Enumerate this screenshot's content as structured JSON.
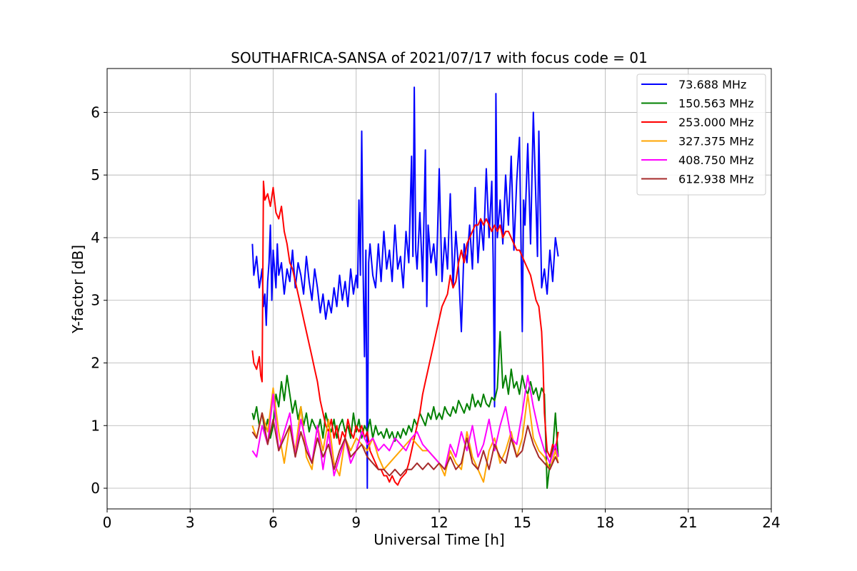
{
  "chart_data": {
    "type": "line",
    "title": "SOUTHAFRICA-SANSA of 2021/07/17 with focus code = 01",
    "xlabel": "Universal Time [h]",
    "ylabel": "Y-factor [dB]",
    "xlim": [
      0,
      24
    ],
    "ylim": [
      -0.33,
      6.7
    ],
    "xticks": [
      0,
      3,
      6,
      9,
      12,
      15,
      18,
      21,
      24
    ],
    "yticks": [
      0,
      1,
      2,
      3,
      4,
      5,
      6
    ],
    "grid": true,
    "legend_position": "top-right",
    "series": [
      {
        "name": " 73.688 MHz",
        "color": "#0000ff",
        "x": [
          5.25,
          5.3,
          5.4,
          5.5,
          5.6,
          5.65,
          5.7,
          5.75,
          5.8,
          5.85,
          5.9,
          5.95,
          6.0,
          6.05,
          6.1,
          6.15,
          6.2,
          6.3,
          6.4,
          6.5,
          6.6,
          6.7,
          6.8,
          6.9,
          7.0,
          7.1,
          7.2,
          7.3,
          7.4,
          7.5,
          7.6,
          7.7,
          7.8,
          7.9,
          8.0,
          8.1,
          8.2,
          8.3,
          8.4,
          8.5,
          8.6,
          8.7,
          8.8,
          8.9,
          9.0,
          9.05,
          9.1,
          9.15,
          9.2,
          9.25,
          9.3,
          9.35,
          9.4,
          9.45,
          9.5,
          9.6,
          9.7,
          9.8,
          9.9,
          10.0,
          10.1,
          10.2,
          10.3,
          10.4,
          10.5,
          10.6,
          10.7,
          10.8,
          10.9,
          11.0,
          11.05,
          11.1,
          11.15,
          11.2,
          11.3,
          11.4,
          11.5,
          11.55,
          11.6,
          11.7,
          11.8,
          11.9,
          12.0,
          12.1,
          12.2,
          12.3,
          12.4,
          12.5,
          12.6,
          12.7,
          12.8,
          12.9,
          13.0,
          13.1,
          13.2,
          13.3,
          13.4,
          13.5,
          13.6,
          13.7,
          13.8,
          13.9,
          13.95,
          14.0,
          14.05,
          14.1,
          14.2,
          14.3,
          14.4,
          14.5,
          14.6,
          14.7,
          14.8,
          14.9,
          15.0,
          15.05,
          15.1,
          15.2,
          15.3,
          15.4,
          15.5,
          15.55,
          15.6,
          15.7,
          15.8,
          15.9,
          16.0,
          16.1,
          16.2,
          16.3
        ],
        "y": [
          3.9,
          3.4,
          3.7,
          3.2,
          3.5,
          2.9,
          3.1,
          2.6,
          3.3,
          3.6,
          4.2,
          3.0,
          3.8,
          3.5,
          3.2,
          3.9,
          3.4,
          3.6,
          3.1,
          3.5,
          3.3,
          3.8,
          3.2,
          3.6,
          3.4,
          3.1,
          3.7,
          3.3,
          3.0,
          3.5,
          3.2,
          2.8,
          3.1,
          2.7,
          3.0,
          2.8,
          3.2,
          2.9,
          3.4,
          3.0,
          3.3,
          2.9,
          3.5,
          3.1,
          3.4,
          3.2,
          4.6,
          3.4,
          5.7,
          3.5,
          2.1,
          3.8,
          0.0,
          3.6,
          3.9,
          3.4,
          3.2,
          3.9,
          3.3,
          4.1,
          3.5,
          3.8,
          3.3,
          4.2,
          3.5,
          3.7,
          3.2,
          4.1,
          3.6,
          5.3,
          3.7,
          6.4,
          3.8,
          3.5,
          4.4,
          3.3,
          5.4,
          2.9,
          4.2,
          3.6,
          3.9,
          3.4,
          5.1,
          3.3,
          4.0,
          3.5,
          4.7,
          3.2,
          4.1,
          3.5,
          2.5,
          3.9,
          3.6,
          4.2,
          3.5,
          4.8,
          3.6,
          4.3,
          3.8,
          5.1,
          4.0,
          4.9,
          3.6,
          1.3,
          6.3,
          4.0,
          4.6,
          3.9,
          5.0,
          4.2,
          5.3,
          3.8,
          4.9,
          5.6,
          2.5,
          4.6,
          4.2,
          5.5,
          3.9,
          6.0,
          4.5,
          3.7,
          5.7,
          3.2,
          3.5,
          3.1,
          3.8,
          3.3,
          4.0,
          3.7
        ]
      },
      {
        "name": "150.563 MHz",
        "color": "#008000",
        "x": [
          5.25,
          5.3,
          5.4,
          5.5,
          5.6,
          5.7,
          5.8,
          5.9,
          6.0,
          6.1,
          6.2,
          6.3,
          6.4,
          6.5,
          6.6,
          6.7,
          6.8,
          6.9,
          7.0,
          7.1,
          7.2,
          7.3,
          7.4,
          7.5,
          7.6,
          7.7,
          7.8,
          7.9,
          8.0,
          8.1,
          8.2,
          8.3,
          8.4,
          8.5,
          8.6,
          8.7,
          8.8,
          8.9,
          9.0,
          9.1,
          9.2,
          9.3,
          9.4,
          9.5,
          9.6,
          9.7,
          9.8,
          9.9,
          10.0,
          10.1,
          10.2,
          10.3,
          10.4,
          10.5,
          10.6,
          10.7,
          10.8,
          10.9,
          11.0,
          11.1,
          11.2,
          11.3,
          11.4,
          11.5,
          11.6,
          11.7,
          11.8,
          11.9,
          12.0,
          12.1,
          12.2,
          12.3,
          12.4,
          12.5,
          12.6,
          12.7,
          12.8,
          12.9,
          13.0,
          13.1,
          13.2,
          13.3,
          13.4,
          13.5,
          13.6,
          13.7,
          13.8,
          13.9,
          14.0,
          14.1,
          14.2,
          14.3,
          14.4,
          14.5,
          14.6,
          14.7,
          14.8,
          14.9,
          15.0,
          15.1,
          15.2,
          15.3,
          15.4,
          15.5,
          15.6,
          15.7,
          15.8,
          15.9,
          16.0,
          16.1,
          16.2,
          16.3
        ],
        "y": [
          1.2,
          1.1,
          1.3,
          1.0,
          1.2,
          0.9,
          1.1,
          0.8,
          1.0,
          1.5,
          1.3,
          1.7,
          1.4,
          1.8,
          1.5,
          1.2,
          1.4,
          1.1,
          1.3,
          1.0,
          1.2,
          0.9,
          1.1,
          1.0,
          0.9,
          1.1,
          0.8,
          1.2,
          1.0,
          0.9,
          1.1,
          0.8,
          1.0,
          1.1,
          0.9,
          1.0,
          0.8,
          1.2,
          0.9,
          1.1,
          0.8,
          1.0,
          0.9,
          1.1,
          0.8,
          1.0,
          0.85,
          0.9,
          0.8,
          0.95,
          0.8,
          0.9,
          0.75,
          0.9,
          0.8,
          0.95,
          0.85,
          1.0,
          0.9,
          1.1,
          1.0,
          1.2,
          1.1,
          1.0,
          1.2,
          1.1,
          1.3,
          1.1,
          1.2,
          1.1,
          1.3,
          1.2,
          1.15,
          1.3,
          1.2,
          1.4,
          1.3,
          1.2,
          1.35,
          1.25,
          1.5,
          1.3,
          1.4,
          1.3,
          1.5,
          1.35,
          1.3,
          1.45,
          1.4,
          1.6,
          2.5,
          1.6,
          1.8,
          1.5,
          1.9,
          1.6,
          1.7,
          1.5,
          1.8,
          1.6,
          1.5,
          1.7,
          1.5,
          1.6,
          1.4,
          1.6,
          1.5,
          0.0,
          0.4,
          0.6,
          1.2,
          0.5
        ]
      },
      {
        "name": "253.000 MHz",
        "color": "#ff0000",
        "x": [
          5.25,
          5.3,
          5.4,
          5.5,
          5.55,
          5.6,
          5.65,
          5.7,
          5.8,
          5.9,
          6.0,
          6.1,
          6.2,
          6.3,
          6.4,
          6.5,
          6.6,
          6.7,
          6.8,
          6.9,
          7.0,
          7.1,
          7.2,
          7.3,
          7.4,
          7.5,
          7.6,
          7.7,
          7.8,
          7.9,
          8.0,
          8.1,
          8.2,
          8.3,
          8.4,
          8.5,
          8.6,
          8.7,
          8.8,
          8.9,
          9.0,
          9.1,
          9.2,
          9.3,
          9.4,
          9.5,
          9.6,
          9.7,
          9.8,
          9.9,
          10.0,
          10.1,
          10.2,
          10.3,
          10.4,
          10.5,
          10.6,
          10.7,
          10.8,
          10.9,
          11.0,
          11.1,
          11.2,
          11.3,
          11.4,
          11.5,
          11.6,
          11.7,
          11.8,
          11.9,
          12.0,
          12.1,
          12.2,
          12.3,
          12.4,
          12.5,
          12.6,
          12.7,
          12.8,
          12.9,
          13.0,
          13.1,
          13.2,
          13.3,
          13.4,
          13.5,
          13.6,
          13.7,
          13.8,
          13.9,
          14.0,
          14.1,
          14.2,
          14.3,
          14.4,
          14.5,
          14.6,
          14.7,
          14.8,
          14.9,
          15.0,
          15.1,
          15.2,
          15.3,
          15.4,
          15.5,
          15.6,
          15.65,
          15.7,
          15.75,
          15.8,
          15.9,
          16.0,
          16.1,
          16.2,
          16.3
        ],
        "y": [
          2.2,
          2.0,
          1.9,
          2.1,
          1.8,
          1.7,
          4.9,
          4.6,
          4.7,
          4.5,
          4.8,
          4.4,
          4.3,
          4.5,
          4.1,
          3.9,
          3.6,
          3.5,
          3.3,
          3.1,
          2.9,
          2.7,
          2.5,
          2.3,
          2.1,
          1.9,
          1.7,
          1.4,
          1.2,
          1.0,
          0.9,
          1.1,
          0.8,
          1.0,
          0.7,
          0.9,
          0.8,
          1.1,
          0.9,
          0.8,
          1.0,
          0.9,
          1.0,
          0.8,
          0.9,
          0.6,
          0.5,
          0.4,
          0.3,
          0.3,
          0.2,
          0.2,
          0.1,
          0.2,
          0.1,
          0.05,
          0.15,
          0.2,
          0.25,
          0.4,
          0.6,
          0.8,
          1.0,
          1.2,
          1.5,
          1.7,
          1.9,
          2.1,
          2.3,
          2.5,
          2.7,
          2.9,
          3.0,
          3.1,
          3.4,
          3.2,
          3.3,
          3.6,
          3.8,
          3.6,
          3.9,
          4.0,
          4.1,
          4.2,
          4.2,
          4.3,
          4.2,
          4.3,
          4.2,
          4.1,
          4.2,
          4.1,
          4.2,
          4.0,
          4.1,
          4.1,
          4.0,
          3.9,
          3.8,
          3.8,
          3.7,
          3.6,
          3.5,
          3.4,
          3.2,
          3.0,
          2.9,
          2.7,
          2.5,
          2.0,
          1.2,
          0.6,
          0.5,
          0.7,
          0.6,
          0.9
        ]
      },
      {
        "name": "327.375 MHz",
        "color": "#ffa500",
        "x": [
          5.25,
          5.4,
          5.6,
          5.8,
          6.0,
          6.2,
          6.4,
          6.6,
          6.8,
          7.0,
          7.2,
          7.4,
          7.6,
          7.8,
          8.0,
          8.2,
          8.4,
          8.6,
          8.8,
          9.0,
          9.2,
          9.4,
          9.6,
          9.8,
          10.0,
          10.2,
          10.4,
          10.6,
          10.8,
          11.0,
          11.2,
          11.4,
          11.6,
          11.8,
          12.0,
          12.2,
          12.4,
          12.6,
          12.8,
          13.0,
          13.2,
          13.4,
          13.6,
          13.8,
          14.0,
          14.2,
          14.4,
          14.6,
          14.8,
          15.0,
          15.2,
          15.4,
          15.6,
          15.8,
          16.0,
          16.2,
          16.3
        ],
        "y": [
          1.0,
          0.8,
          1.2,
          0.9,
          1.6,
          0.9,
          0.4,
          1.0,
          0.6,
          1.3,
          0.5,
          0.3,
          1.0,
          0.6,
          1.1,
          0.4,
          0.2,
          0.8,
          0.6,
          0.8,
          0.7,
          0.6,
          0.8,
          0.5,
          0.3,
          0.4,
          0.5,
          0.6,
          0.7,
          0.8,
          0.7,
          0.6,
          0.6,
          0.5,
          0.4,
          0.2,
          0.6,
          0.4,
          0.3,
          0.9,
          0.5,
          0.3,
          0.1,
          0.6,
          0.8,
          0.4,
          0.6,
          0.9,
          0.5,
          0.8,
          1.5,
          0.8,
          0.6,
          0.5,
          0.3,
          0.6,
          0.4
        ]
      },
      {
        "name": "408.750 MHz",
        "color": "#ff00ff",
        "x": [
          5.25,
          5.4,
          5.6,
          5.8,
          6.0,
          6.2,
          6.4,
          6.6,
          6.8,
          7.0,
          7.2,
          7.4,
          7.6,
          7.8,
          8.0,
          8.2,
          8.4,
          8.6,
          8.8,
          9.0,
          9.2,
          9.4,
          9.6,
          9.8,
          10.0,
          10.2,
          10.4,
          10.6,
          10.8,
          11.0,
          11.2,
          11.4,
          11.6,
          11.8,
          12.0,
          12.2,
          12.4,
          12.6,
          12.8,
          13.0,
          13.2,
          13.4,
          13.6,
          13.8,
          14.0,
          14.2,
          14.4,
          14.6,
          14.8,
          15.0,
          15.2,
          15.4,
          15.6,
          15.8,
          16.0,
          16.2,
          16.3
        ],
        "y": [
          0.6,
          0.5,
          1.0,
          0.7,
          1.5,
          0.6,
          0.9,
          1.2,
          0.5,
          1.1,
          0.7,
          0.4,
          1.0,
          0.3,
          0.9,
          0.2,
          0.5,
          0.8,
          0.4,
          0.6,
          0.9,
          0.7,
          0.8,
          0.6,
          0.7,
          0.6,
          0.8,
          0.7,
          0.6,
          0.8,
          0.9,
          0.7,
          0.6,
          0.5,
          0.4,
          0.3,
          0.7,
          0.5,
          0.9,
          0.6,
          1.0,
          0.5,
          0.7,
          1.1,
          0.6,
          1.0,
          1.3,
          0.8,
          0.7,
          1.2,
          1.8,
          1.3,
          0.9,
          0.6,
          0.4,
          0.7,
          0.5
        ]
      },
      {
        "name": "612.938 MHz",
        "color": "#a52a2a",
        "x": [
          5.25,
          5.4,
          5.6,
          5.8,
          6.0,
          6.2,
          6.4,
          6.6,
          6.8,
          7.0,
          7.2,
          7.4,
          7.6,
          7.8,
          8.0,
          8.2,
          8.4,
          8.6,
          8.8,
          9.0,
          9.2,
          9.4,
          9.6,
          9.8,
          10.0,
          10.2,
          10.4,
          10.6,
          10.8,
          11.0,
          11.2,
          11.4,
          11.6,
          11.8,
          12.0,
          12.2,
          12.4,
          12.6,
          12.8,
          13.0,
          13.2,
          13.4,
          13.6,
          13.8,
          14.0,
          14.2,
          14.4,
          14.6,
          14.8,
          15.0,
          15.2,
          15.4,
          15.6,
          15.8,
          16.0,
          16.2,
          16.3
        ],
        "y": [
          0.9,
          0.8,
          1.2,
          0.7,
          1.1,
          0.6,
          0.8,
          1.0,
          0.5,
          0.9,
          0.6,
          0.4,
          0.8,
          0.5,
          0.7,
          0.3,
          0.6,
          0.8,
          0.5,
          0.6,
          0.7,
          0.5,
          0.4,
          0.3,
          0.3,
          0.2,
          0.3,
          0.2,
          0.3,
          0.3,
          0.4,
          0.3,
          0.4,
          0.3,
          0.4,
          0.3,
          0.5,
          0.3,
          0.4,
          0.8,
          0.4,
          0.3,
          0.6,
          0.3,
          0.7,
          0.5,
          0.4,
          0.8,
          0.5,
          0.6,
          1.0,
          0.7,
          0.5,
          0.4,
          0.3,
          0.5,
          0.4
        ]
      }
    ]
  }
}
